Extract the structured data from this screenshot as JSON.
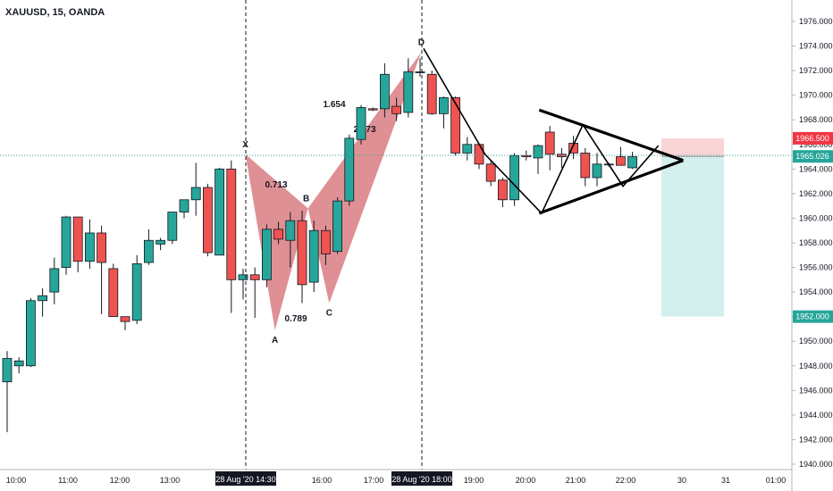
{
  "chart_data": {
    "type": "candlestick",
    "title": "XAUUSD, 15, OANDA",
    "symbol_bar": {
      "open_label": "",
      "high_label": ""
    },
    "y_axis": {
      "ticks": [
        "1976.000",
        "1974.000",
        "1972.000",
        "1970.000",
        "1968.000",
        "1966.000",
        "1964.000",
        "1962.000",
        "1960.000",
        "1958.000",
        "1956.000",
        "1954.000",
        "1952.000",
        "1950.000",
        "1948.000",
        "1946.000",
        "1944.000",
        "1942.000",
        "1940.000"
      ],
      "min": 1940,
      "max": 1976
    },
    "x_axis": {
      "ticks": [
        "10:00",
        "11:00",
        "12:00",
        "13:00",
        "16:00",
        "17:00",
        "19:00",
        "20:00",
        "21:00",
        "22:00",
        "30",
        "31",
        "01:00"
      ],
      "crosshair_labels": [
        "28 Aug '20  14:30",
        "28 Aug '20  18:00"
      ]
    },
    "candles": [
      {
        "o": 1946.7,
        "h": 1949.2,
        "l": 1942.6,
        "c": 1948.6
      },
      {
        "o": 1948.0,
        "h": 1948.7,
        "l": 1947.4,
        "c": 1948.4
      },
      {
        "o": 1948.0,
        "h": 1953.5,
        "l": 1947.9,
        "c": 1953.3
      },
      {
        "o": 1953.3,
        "h": 1954.3,
        "l": 1952.0,
        "c": 1953.7
      },
      {
        "o": 1954.0,
        "h": 1956.8,
        "l": 1953.0,
        "c": 1955.9
      },
      {
        "o": 1956.0,
        "h": 1960.2,
        "l": 1955.4,
        "c": 1960.1
      },
      {
        "o": 1960.1,
        "h": 1960.1,
        "l": 1955.6,
        "c": 1956.5
      },
      {
        "o": 1956.5,
        "h": 1959.9,
        "l": 1955.9,
        "c": 1958.8
      },
      {
        "o": 1958.8,
        "h": 1959.4,
        "l": 1952.2,
        "c": 1956.4
      },
      {
        "o": 1955.9,
        "h": 1956.3,
        "l": 1952.1,
        "c": 1952.0
      },
      {
        "o": 1952.0,
        "h": 1952.0,
        "l": 1950.9,
        "c": 1951.6
      },
      {
        "o": 1951.7,
        "h": 1957.0,
        "l": 1951.4,
        "c": 1956.3
      },
      {
        "o": 1956.4,
        "h": 1959.1,
        "l": 1956.2,
        "c": 1958.2
      },
      {
        "o": 1957.9,
        "h": 1958.4,
        "l": 1957.4,
        "c": 1958.2
      },
      {
        "o": 1958.2,
        "h": 1960.2,
        "l": 1957.9,
        "c": 1960.5
      },
      {
        "o": 1960.5,
        "h": 1961.4,
        "l": 1960.0,
        "c": 1961.5
      },
      {
        "o": 1961.5,
        "h": 1964.5,
        "l": 1960.2,
        "c": 1962.5
      },
      {
        "o": 1962.5,
        "h": 1962.8,
        "l": 1956.9,
        "c": 1957.2
      },
      {
        "o": 1957.0,
        "h": 1964.1,
        "l": 1957.0,
        "c": 1964.0
      },
      {
        "o": 1964.0,
        "h": 1964.7,
        "l": 1952.3,
        "c": 1955.0
      },
      {
        "o": 1955.0,
        "h": 1955.9,
        "l": 1953.4,
        "c": 1955.4
      },
      {
        "o": 1955.4,
        "h": 1956.0,
        "l": 1951.9,
        "c": 1955.0
      },
      {
        "o": 1955.0,
        "h": 1959.5,
        "l": 1954.4,
        "c": 1959.1
      },
      {
        "o": 1959.1,
        "h": 1959.7,
        "l": 1957.9,
        "c": 1958.3
      },
      {
        "o": 1958.2,
        "h": 1960.5,
        "l": 1956.0,
        "c": 1959.8
      },
      {
        "o": 1959.8,
        "h": 1960.6,
        "l": 1953.1,
        "c": 1954.6
      },
      {
        "o": 1954.8,
        "h": 1959.8,
        "l": 1954.0,
        "c": 1959.0
      },
      {
        "o": 1959.0,
        "h": 1959.4,
        "l": 1956.2,
        "c": 1957.1
      },
      {
        "o": 1957.3,
        "h": 1961.7,
        "l": 1957.1,
        "c": 1961.4
      },
      {
        "o": 1961.4,
        "h": 1966.8,
        "l": 1961.0,
        "c": 1966.5
      },
      {
        "o": 1966.4,
        "h": 1969.2,
        "l": 1966.0,
        "c": 1969.0
      },
      {
        "o": 1968.9,
        "h": 1969.0,
        "l": 1968.7,
        "c": 1968.8
      },
      {
        "o": 1968.9,
        "h": 1972.6,
        "l": 1968.2,
        "c": 1971.7
      },
      {
        "o": 1969.1,
        "h": 1969.8,
        "l": 1967.9,
        "c": 1968.5
      },
      {
        "o": 1968.6,
        "h": 1973.0,
        "l": 1968.2,
        "c": 1971.9
      },
      {
        "o": 1971.9,
        "h": 1973.0,
        "l": 1971.5,
        "c": 1971.9
      },
      {
        "o": 1971.7,
        "h": 1972.0,
        "l": 1968.4,
        "c": 1968.5
      },
      {
        "o": 1968.5,
        "h": 1969.9,
        "l": 1967.3,
        "c": 1969.8
      },
      {
        "o": 1969.8,
        "h": 1969.9,
        "l": 1965.1,
        "c": 1965.3
      },
      {
        "o": 1965.3,
        "h": 1966.6,
        "l": 1964.7,
        "c": 1966.0
      },
      {
        "o": 1966.0,
        "h": 1966.1,
        "l": 1964.0,
        "c": 1964.4
      },
      {
        "o": 1964.4,
        "h": 1964.7,
        "l": 1962.6,
        "c": 1963.0
      },
      {
        "o": 1963.1,
        "h": 1963.3,
        "l": 1960.9,
        "c": 1961.5
      },
      {
        "o": 1961.5,
        "h": 1965.3,
        "l": 1961.0,
        "c": 1965.1
      },
      {
        "o": 1965.1,
        "h": 1965.5,
        "l": 1964.7,
        "c": 1965.0
      },
      {
        "o": 1964.9,
        "h": 1966.0,
        "l": 1963.6,
        "c": 1965.9
      },
      {
        "o": 1967.0,
        "h": 1967.5,
        "l": 1963.9,
        "c": 1965.2
      },
      {
        "o": 1965.2,
        "h": 1965.7,
        "l": 1964.1,
        "c": 1965.0
      },
      {
        "o": 1966.1,
        "h": 1966.7,
        "l": 1964.8,
        "c": 1965.3
      },
      {
        "o": 1965.3,
        "h": 1965.7,
        "l": 1962.6,
        "c": 1963.3
      },
      {
        "o": 1963.3,
        "h": 1965.3,
        "l": 1962.6,
        "c": 1964.4
      },
      {
        "o": 1964.4,
        "h": 1964.5,
        "l": 1964.2,
        "c": 1964.4
      },
      {
        "o": 1965.0,
        "h": 1965.8,
        "l": 1964.3,
        "c": 1964.3
      },
      {
        "o": 1964.1,
        "h": 1965.4,
        "l": 1964.0,
        "c": 1965.0
      }
    ],
    "harmonic_pattern": {
      "points": [
        {
          "label": "X",
          "value": 1965.2
        },
        {
          "label": "A",
          "value": 1950.9
        },
        {
          "label": "B",
          "value": 1960.8
        },
        {
          "label": "C",
          "value": 1953.1
        },
        {
          "label": "D",
          "value": 1973.5
        }
      ],
      "ratios": [
        "0.713",
        "0.789",
        "1.654",
        "2.673"
      ],
      "fill_color": "#c4343c"
    },
    "triangle_pattern": {
      "upper_start": 1968.8,
      "lower_start": 1960.4,
      "apex": 1964.7
    },
    "position_tool": {
      "entry": "1965.026",
      "stop": "1966.500",
      "target": "1952.000",
      "current": "1965.111"
    },
    "colors": {
      "up": "#26a69a",
      "down": "#ef5350",
      "stop_zone": "#f8c9cc",
      "target_zone": "#cfeeec",
      "price_line": "#26a69a",
      "axis_text": "#131722"
    }
  }
}
